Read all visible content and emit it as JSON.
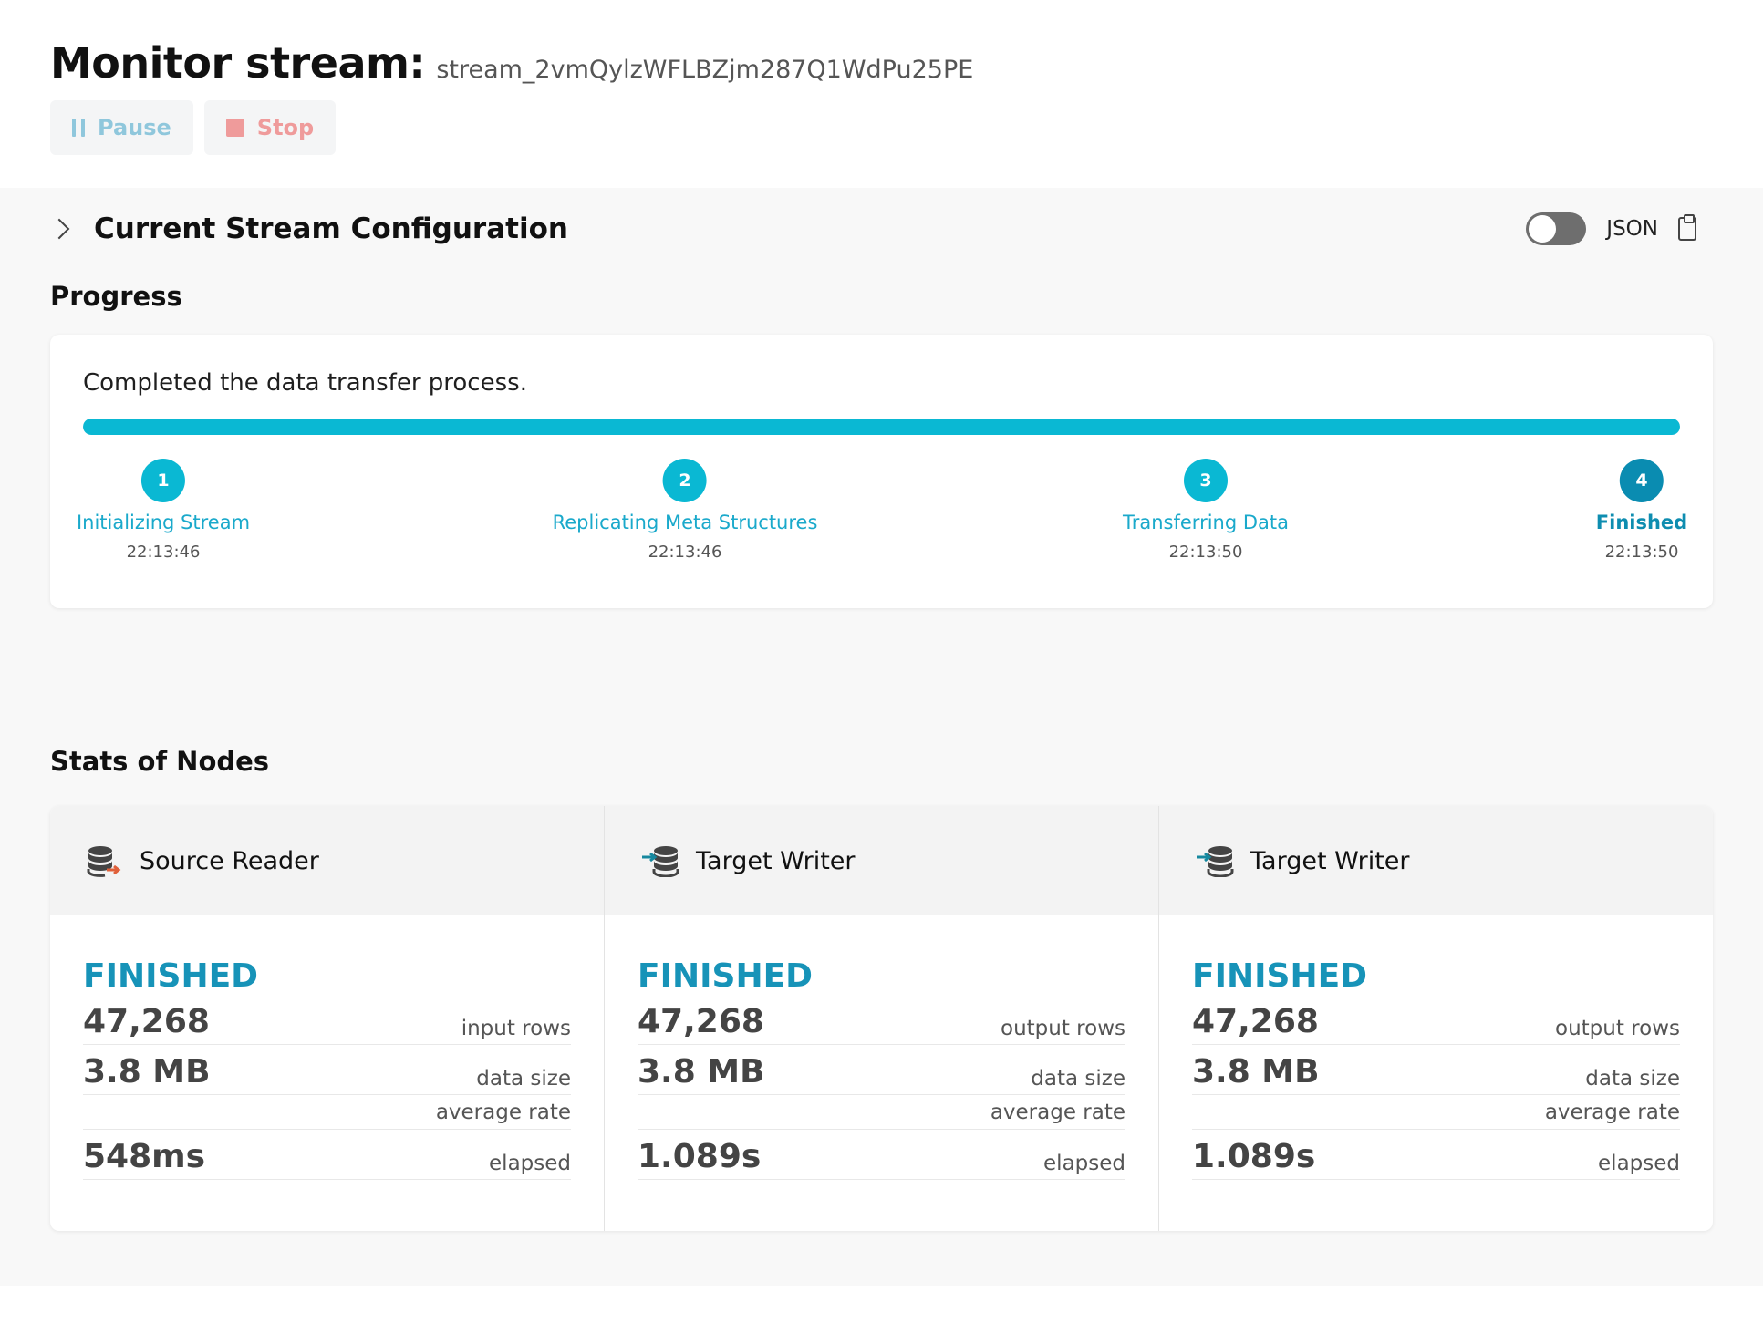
{
  "header": {
    "title": "Monitor stream:",
    "stream_id": "stream_2vmQylzWFLBZjm287Q1WdPu25PE",
    "pause_label": "Pause",
    "stop_label": "Stop"
  },
  "config": {
    "title": "Current Stream Configuration",
    "json_label": "JSON",
    "json_toggle_on": false
  },
  "progress": {
    "title": "Progress",
    "message": "Completed the data transfer process.",
    "percent": 100,
    "accent_color": "#0ab8d3",
    "steps": [
      {
        "number": "1",
        "name": "Initializing Stream",
        "time": "22:13:46"
      },
      {
        "number": "2",
        "name": "Replicating Meta Structures",
        "time": "22:13:46"
      },
      {
        "number": "3",
        "name": "Transferring Data",
        "time": "22:13:50"
      },
      {
        "number": "4",
        "name": "Finished",
        "time": "22:13:50"
      }
    ]
  },
  "stats": {
    "title": "Stats of Nodes",
    "nodes": [
      {
        "icon": "database-export-icon",
        "name": "Source Reader",
        "status": "FINISHED",
        "rows": "47,268",
        "rows_label": "input rows",
        "size": "3.8 MB",
        "size_label": "data size",
        "rate_label": "average rate",
        "elapsed": "548ms",
        "elapsed_label": "elapsed"
      },
      {
        "icon": "database-import-icon",
        "name": "Target Writer",
        "status": "FINISHED",
        "rows": "47,268",
        "rows_label": "output rows",
        "size": "3.8 MB",
        "size_label": "data size",
        "rate_label": "average rate",
        "elapsed": "1.089s",
        "elapsed_label": "elapsed"
      },
      {
        "icon": "database-import-icon",
        "name": "Target Writer",
        "status": "FINISHED",
        "rows": "47,268",
        "rows_label": "output rows",
        "size": "3.8 MB",
        "size_label": "data size",
        "rate_label": "average rate",
        "elapsed": "1.089s",
        "elapsed_label": "elapsed"
      }
    ]
  }
}
